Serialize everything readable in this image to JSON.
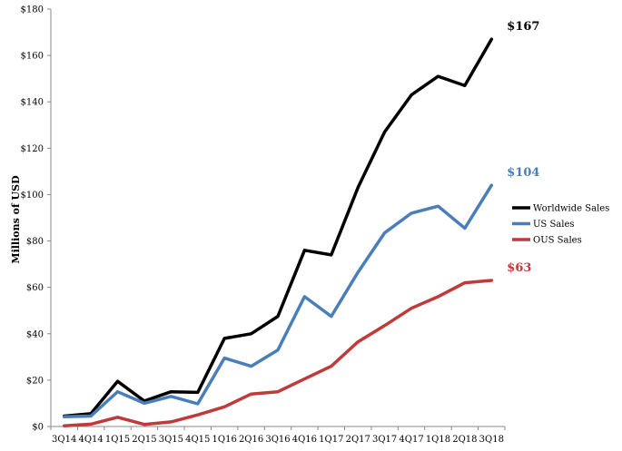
{
  "chart_data": {
    "type": "line",
    "title": "",
    "xlabel": "",
    "ylabel": "Millions of USD",
    "ylim": [
      0,
      180
    ],
    "yticks": [
      0,
      20,
      40,
      60,
      80,
      100,
      120,
      140,
      160,
      180
    ],
    "ytick_labels": [
      "$0",
      "$20",
      "$40",
      "$60",
      "$80",
      "$100",
      "$120",
      "$140",
      "$160",
      "$180"
    ],
    "categories": [
      "3Q14",
      "4Q14",
      "1Q15",
      "2Q15",
      "3Q15",
      "4Q15",
      "1Q16",
      "2Q16",
      "3Q16",
      "4Q16",
      "1Q17",
      "2Q17",
      "3Q17",
      "4Q17",
      "1Q18",
      "2Q18",
      "3Q18"
    ],
    "grid": false,
    "legend_position": "right",
    "series": [
      {
        "name": "Worldwide Sales",
        "color": "#000000",
        "values": [
          4.5,
          5.5,
          19.5,
          11,
          15,
          14.7,
          38,
          40,
          47.5,
          76,
          74,
          103,
          127,
          143,
          151,
          147,
          167
        ],
        "end_label": "$167"
      },
      {
        "name": "US Sales",
        "color": "#4a7ebb",
        "values": [
          4.2,
          4.5,
          15,
          10,
          13,
          9.8,
          29.5,
          26,
          33,
          56,
          47.5,
          66.5,
          83.5,
          92,
          95,
          85.5,
          104
        ],
        "end_label": "$104"
      },
      {
        "name": "OUS Sales",
        "color": "#c0393b",
        "values": [
          0.3,
          1,
          4,
          0.9,
          2,
          5,
          8.5,
          14,
          15,
          20.5,
          26,
          36.5,
          43.5,
          51,
          56,
          62,
          63
        ],
        "end_label": "$63"
      }
    ]
  }
}
